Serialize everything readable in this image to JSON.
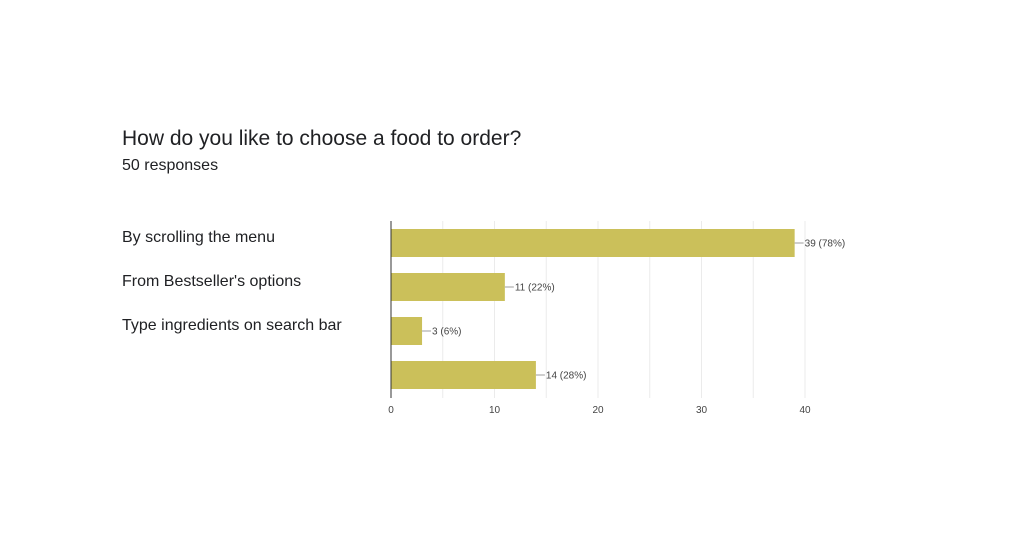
{
  "chart_data": {
    "type": "bar",
    "orientation": "horizontal",
    "title": "How do you like to choose a food to order?",
    "subtitle": "50 responses",
    "categories": [
      "By scrolling the menu",
      "From Bestseller's options",
      "Type ingredients on search bar",
      ""
    ],
    "values": [
      39,
      11,
      3,
      14
    ],
    "data_labels": [
      "39 (78%)",
      "11 (22%)",
      "3 (6%)",
      "14 (28%)"
    ],
    "x_ticks": [
      0,
      10,
      20,
      30,
      40
    ],
    "xlim": [
      0,
      40
    ],
    "grid": true,
    "legend": "none",
    "bar_color": "#cbc05a"
  }
}
